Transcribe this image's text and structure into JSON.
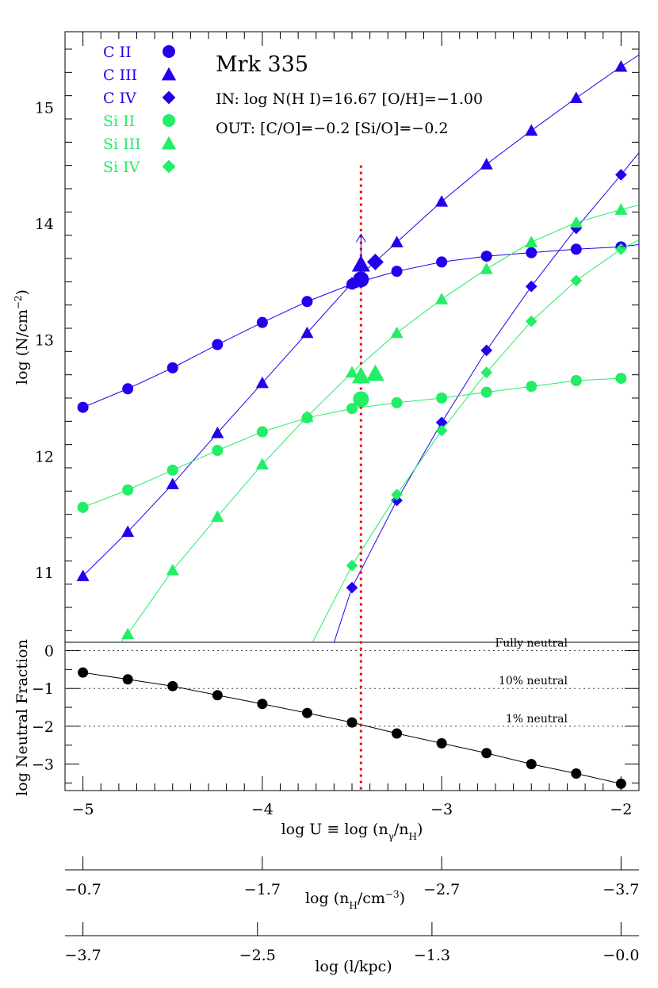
{
  "colors": {
    "carbon": "#2200ee",
    "silicon": "#22ee66",
    "neutral": "#000000",
    "model": "#ee0000"
  },
  "title": "Mrk 335",
  "subtitle_in": "IN: log N(H I)=16.67 [O/H]=−1.00",
  "subtitle_out": "OUT: [C/O]=−0.2 [Si/O]=−0.2",
  "legend": [
    {
      "label": "C  II",
      "color": "carbon",
      "marker": "circle"
    },
    {
      "label": "C  III",
      "color": "carbon",
      "marker": "triangle"
    },
    {
      "label": "C  IV",
      "color": "carbon",
      "marker": "diamond"
    },
    {
      "label": "Si  II",
      "color": "silicon",
      "marker": "circle"
    },
    {
      "label": "Si  III",
      "color": "silicon",
      "marker": "triangle"
    },
    {
      "label": "Si  IV",
      "color": "silicon",
      "marker": "diamond"
    }
  ],
  "chart_data": [
    {
      "type": "line",
      "ylabel": "log (N/cm",
      "ylabel_sup": "−2",
      "ylabel_end": ")",
      "xlim": [
        -5.1,
        -1.9
      ],
      "ylim": [
        10.4,
        15.65
      ],
      "yticks": [
        11,
        12,
        13,
        14,
        15
      ],
      "yticklabels": [
        "11",
        "12",
        "13",
        "14",
        "15"
      ],
      "model_logU": -3.45,
      "model_line_top": 14.5,
      "series": [
        {
          "name": "C II",
          "color": "carbon",
          "marker": "circle",
          "x": [
            -5.0,
            -4.75,
            -4.5,
            -4.25,
            -4.0,
            -3.75,
            -3.5,
            -3.25,
            -3.0,
            -2.75,
            -2.5,
            -2.25,
            -2.0
          ],
          "y": [
            12.42,
            12.58,
            12.76,
            12.96,
            13.15,
            13.33,
            13.48,
            13.59,
            13.67,
            13.72,
            13.75,
            13.78,
            13.8
          ]
        },
        {
          "name": "C III",
          "color": "carbon",
          "marker": "triangle",
          "x": [
            -5.0,
            -4.75,
            -4.5,
            -4.25,
            -4.0,
            -3.75,
            -3.5,
            -3.25,
            -3.0,
            -2.75,
            -2.5,
            -2.25,
            -2.0
          ],
          "y": [
            10.97,
            11.35,
            11.76,
            12.2,
            12.63,
            13.06,
            13.49,
            13.84,
            14.19,
            14.51,
            14.8,
            15.08,
            15.35
          ]
        },
        {
          "name": "C IV",
          "color": "carbon",
          "marker": "diamond",
          "x": [
            -3.5,
            -3.25,
            -3.0,
            -2.75,
            -2.5,
            -2.25,
            -2.0
          ],
          "y": [
            10.87,
            11.62,
            12.29,
            12.91,
            13.46,
            13.96,
            14.42
          ]
        },
        {
          "name": "Si II",
          "color": "silicon",
          "marker": "circle",
          "x": [
            -5.0,
            -4.75,
            -4.5,
            -4.25,
            -4.0,
            -3.75,
            -3.5,
            -3.25,
            -3.0,
            -2.75,
            -2.5,
            -2.25,
            -2.0
          ],
          "y": [
            11.56,
            11.71,
            11.88,
            12.05,
            12.21,
            12.33,
            12.41,
            12.46,
            12.5,
            12.55,
            12.6,
            12.65,
            12.67
          ]
        },
        {
          "name": "Si III",
          "color": "silicon",
          "marker": "triangle",
          "x": [
            -4.75,
            -4.5,
            -4.25,
            -4.0,
            -3.75,
            -3.5,
            -3.25,
            -3.0,
            -2.75,
            -2.5,
            -2.25,
            -2.0
          ],
          "y": [
            10.47,
            11.02,
            11.48,
            11.93,
            12.34,
            12.72,
            13.06,
            13.35,
            13.61,
            13.84,
            14.01,
            14.12
          ]
        },
        {
          "name": "Si IV",
          "color": "silicon",
          "marker": "diamond",
          "x": [
            -3.5,
            -3.25,
            -3.0,
            -2.75,
            -2.5,
            -2.25,
            -2.0
          ],
          "y": [
            11.06,
            11.67,
            12.22,
            12.72,
            13.16,
            13.51,
            13.78
          ]
        }
      ],
      "line_extensions": [
        {
          "series": "C III",
          "from": [
            -2.0,
            15.35
          ],
          "to": [
            -1.9,
            15.45
          ]
        },
        {
          "series": "C IV",
          "from": [
            -3.5,
            10.87
          ],
          "to": [
            -3.6,
            10.4
          ]
        },
        {
          "series": "C IV",
          "from": [
            -2.0,
            14.42
          ],
          "to": [
            -1.9,
            14.61
          ]
        },
        {
          "series": "C II",
          "from": [
            -2.0,
            13.8
          ],
          "to": [
            -1.9,
            13.82
          ]
        },
        {
          "series": "Si III",
          "from": [
            -4.75,
            10.47
          ],
          "to": [
            -4.8,
            10.38
          ]
        },
        {
          "series": "Si III",
          "from": [
            -2.0,
            14.12
          ],
          "to": [
            -1.9,
            14.16
          ]
        },
        {
          "series": "Si IV",
          "from": [
            -3.5,
            11.06
          ],
          "to": [
            -3.72,
            10.4
          ]
        },
        {
          "series": "Si IV",
          "from": [
            -2.0,
            13.78
          ],
          "to": [
            -1.9,
            13.86
          ]
        }
      ],
      "observed": [
        {
          "name": "C II",
          "color": "carbon",
          "marker": "circle",
          "x": -3.45,
          "y": 13.52
        },
        {
          "name": "C III",
          "color": "carbon",
          "marker": "triangle",
          "x": -3.45,
          "y": 13.65,
          "lower_limit": true
        },
        {
          "name": "C IV",
          "color": "carbon",
          "marker": "diamond",
          "x": -3.37,
          "y": 13.67
        },
        {
          "name": "Si II",
          "color": "silicon",
          "marker": "circle",
          "x": -3.45,
          "y": 12.49
        },
        {
          "name": "Si III",
          "color": "silicon",
          "marker": "triangle",
          "x": -3.45,
          "y": 12.69
        },
        {
          "name": "Si III",
          "color": "silicon",
          "marker": "triangle",
          "x": -3.37,
          "y": 12.71
        }
      ]
    },
    {
      "type": "line",
      "ylabel": "log Neutral Fraction",
      "xlabel": "log U ≡ log (n",
      "xlabel_sub1": "γ",
      "xlabel_mid": "/n",
      "xlabel_sub2": "H",
      "xlabel_end": ")",
      "xlim": [
        -5.1,
        -1.9
      ],
      "ylim": [
        -3.7,
        0.22
      ],
      "yticks": [
        0,
        -1,
        -2,
        -3
      ],
      "yticklabels": [
        "0",
        "−1",
        "−2",
        "−3"
      ],
      "xticks": [
        -5,
        -4,
        -3,
        -2
      ],
      "xticklabels": [
        "−5",
        "−4",
        "−3",
        "−2"
      ],
      "reference_lines": [
        {
          "y": 0,
          "label": "Fully neutral"
        },
        {
          "y": -1,
          "label": "10% neutral"
        },
        {
          "y": -2,
          "label": "1% neutral"
        }
      ],
      "series": [
        {
          "name": "neutral fraction",
          "color": "neutral",
          "marker": "circle",
          "x": [
            -5.0,
            -4.75,
            -4.5,
            -4.25,
            -4.0,
            -3.75,
            -3.5,
            -3.25,
            -3.0,
            -2.75,
            -2.5,
            -2.25,
            -2.0
          ],
          "y": [
            -0.58,
            -0.76,
            -0.94,
            -1.18,
            -1.41,
            -1.65,
            -1.9,
            -2.19,
            -2.45,
            -2.71,
            -3.0,
            -3.25,
            -3.52
          ]
        }
      ]
    }
  ],
  "axis_nH": {
    "label": "log (n",
    "label_sub": "H",
    "label_mid": "/cm",
    "label_sup": "−3",
    "label_end": ")",
    "ticklabels": [
      "−0.7",
      "−1.7",
      "−2.7",
      "−3.7"
    ],
    "tickvalues": [
      -0.7,
      -1.7,
      -2.7,
      -3.7
    ],
    "logU_at_first": -5.0,
    "logU_per_unit": -1.0
  },
  "axis_l": {
    "label": "log (l/kpc)",
    "ticklabels": [
      "−3.7",
      "−2.5",
      "−1.3",
      "−0.0"
    ],
    "tickvalues": [
      -3.7,
      -2.5,
      -1.3,
      0.0
    ],
    "logU_at_first": -5.0,
    "logU_per_unit": 0.8108
  }
}
